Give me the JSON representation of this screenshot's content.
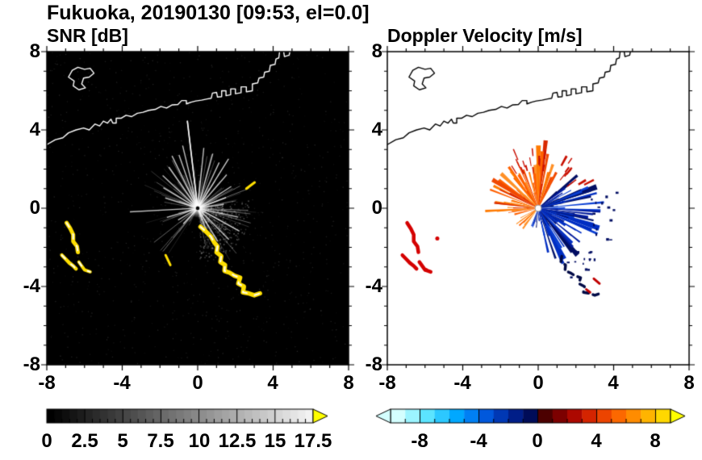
{
  "title": "Fukuoka, 20190130 [09:53, el=0.0]",
  "panels": {
    "snr": {
      "title": "SNR [dB]",
      "x_tick_labels": [
        "-8",
        "-4",
        "0",
        "4",
        "8"
      ],
      "y_tick_labels": [
        "8",
        "4",
        "0",
        "-4",
        "-8"
      ],
      "colorbar_labels": [
        "0",
        "2.5",
        "5",
        "7.5",
        "10",
        "12.5",
        "15",
        "17.5"
      ]
    },
    "doppler": {
      "title": "Doppler Velocity [m/s]",
      "x_tick_labels": [
        "-8",
        "-4",
        "0",
        "4",
        "8"
      ],
      "y_tick_labels": [
        "8",
        "4",
        "0",
        "-4",
        "-8"
      ],
      "colorbar_labels": [
        "-8",
        "-4",
        "0",
        "4",
        "8"
      ]
    }
  },
  "coastline": {
    "main": [
      [
        -8.0,
        3.25
      ],
      [
        -7.55,
        3.5
      ],
      [
        -7.15,
        3.6
      ],
      [
        -6.85,
        3.85
      ],
      [
        -6.45,
        4.0
      ],
      [
        -6.05,
        4.1
      ],
      [
        -5.75,
        4.0
      ],
      [
        -5.45,
        4.3
      ],
      [
        -5.2,
        4.2
      ],
      [
        -5.0,
        4.45
      ],
      [
        -4.78,
        4.35
      ],
      [
        -4.6,
        4.55
      ],
      [
        -4.5,
        4.35
      ],
      [
        -4.32,
        4.35
      ],
      [
        -4.32,
        4.6
      ],
      [
        -4.05,
        4.6
      ],
      [
        -3.8,
        4.75
      ],
      [
        -3.5,
        4.68
      ],
      [
        -3.2,
        4.85
      ],
      [
        -2.9,
        4.9
      ],
      [
        -2.6,
        5.0
      ],
      [
        -2.25,
        5.05
      ],
      [
        -1.95,
        5.2
      ],
      [
        -1.65,
        5.12
      ],
      [
        -1.35,
        5.28
      ],
      [
        -1.05,
        5.3
      ],
      [
        -0.85,
        5.5
      ],
      [
        -0.6,
        5.5
      ],
      [
        -0.6,
        5.33
      ],
      [
        -0.35,
        5.42
      ],
      [
        -0.1,
        5.48
      ],
      [
        0.2,
        5.52
      ],
      [
        0.5,
        5.58
      ],
      [
        0.72,
        5.62
      ],
      [
        0.78,
        5.88
      ],
      [
        1.0,
        5.92
      ],
      [
        1.05,
        5.68
      ],
      [
        1.27,
        5.7
      ],
      [
        1.27,
        6.0
      ],
      [
        1.5,
        6.0
      ],
      [
        1.5,
        5.75
      ],
      [
        1.75,
        5.8
      ],
      [
        1.75,
        6.1
      ],
      [
        2.0,
        6.1
      ],
      [
        2.0,
        5.85
      ],
      [
        2.3,
        5.9
      ],
      [
        2.3,
        6.2
      ],
      [
        2.58,
        6.2
      ],
      [
        2.58,
        5.95
      ],
      [
        2.9,
        6.0
      ],
      [
        2.9,
        6.35
      ],
      [
        3.18,
        6.4
      ],
      [
        3.25,
        6.65
      ],
      [
        3.5,
        6.7
      ],
      [
        3.55,
        6.95
      ],
      [
        3.8,
        7.0
      ],
      [
        3.85,
        7.3
      ],
      [
        4.1,
        7.35
      ],
      [
        4.15,
        7.62
      ],
      [
        4.3,
        7.68
      ],
      [
        4.35,
        8.05
      ]
    ],
    "spur": [
      [
        4.55,
        8.05
      ],
      [
        4.6,
        7.75
      ],
      [
        4.85,
        7.82
      ],
      [
        4.9,
        8.05
      ]
    ],
    "island": [
      [
        -6.85,
        6.7
      ],
      [
        -6.65,
        7.05
      ],
      [
        -6.35,
        7.2
      ],
      [
        -6.0,
        7.1
      ],
      [
        -5.7,
        7.15
      ],
      [
        -5.5,
        6.9
      ],
      [
        -5.75,
        6.7
      ],
      [
        -6.05,
        6.65
      ],
      [
        -6.15,
        6.35
      ],
      [
        -5.95,
        6.15
      ],
      [
        -6.3,
        6.05
      ],
      [
        -6.6,
        6.25
      ],
      [
        -6.55,
        6.5
      ],
      [
        -6.85,
        6.7
      ]
    ]
  },
  "chart_data": [
    {
      "type": "heatmap",
      "title": "SNR [dB]",
      "xlabel": "",
      "ylabel": "",
      "xlim": [
        -8,
        8
      ],
      "ylim": [
        -8,
        8
      ],
      "x_ticks": [
        -8,
        -4,
        0,
        4,
        8
      ],
      "y_ticks": [
        -8,
        -4,
        0,
        4,
        8
      ],
      "background": "#000000",
      "radar_center": [
        0,
        0
      ],
      "colorbar": {
        "min": 0,
        "max": 17.5,
        "tick_values": [
          0,
          2.5,
          5,
          7.5,
          10,
          12.5,
          15,
          17.5
        ],
        "minor_tick_step": 0.5,
        "colormap": "grayscale",
        "start_color": "#000000",
        "end_color": "#f2f2f2",
        "over_arrow_color": "#ffff00"
      },
      "features": {
        "bright_streaks": [
          [
            97,
            4.5
          ],
          [
            104,
            3.3
          ],
          [
            110,
            2.9
          ],
          [
            84,
            3.1
          ],
          [
            74,
            2.9
          ],
          [
            64,
            2.6
          ],
          [
            57,
            3.0
          ],
          [
            48,
            2.3
          ],
          [
            117,
            3.0
          ],
          [
            126,
            2.6
          ],
          [
            138,
            2.5
          ],
          [
            150,
            2.1
          ],
          [
            163,
            1.8
          ],
          [
            32,
            2.1
          ],
          [
            20,
            1.6
          ],
          [
            183,
            3.6
          ],
          [
            196,
            1.7
          ],
          [
            210,
            1.2
          ],
          [
            226,
            1.1
          ],
          [
            -12,
            2.2
          ],
          [
            -28,
            2.5
          ],
          [
            -44,
            2.3
          ],
          [
            -58,
            2.0
          ],
          [
            -68,
            1.5
          ],
          [
            8,
            1.4
          ]
        ],
        "clutter_color": "#ffdf00",
        "arcs": {
          "southeast": [
            [
              0.15,
              -0.95
            ],
            [
              0.45,
              -1.2
            ],
            [
              0.7,
              -1.45
            ],
            [
              0.88,
              -1.75
            ],
            [
              1.05,
              -1.95
            ],
            [
              1.0,
              -2.25
            ],
            [
              1.25,
              -2.45
            ],
            [
              1.2,
              -2.75
            ],
            [
              1.45,
              -2.9
            ],
            [
              1.42,
              -3.2
            ],
            [
              1.7,
              -3.3
            ],
            [
              1.95,
              -3.45
            ],
            [
              2.25,
              -3.55
            ],
            [
              2.15,
              -3.85
            ],
            [
              2.45,
              -4.0
            ],
            [
              2.4,
              -4.3
            ],
            [
              2.7,
              -4.35
            ],
            [
              3.0,
              -4.45
            ],
            [
              3.3,
              -4.35
            ]
          ],
          "west1": [
            [
              -6.95,
              -0.75
            ],
            [
              -6.75,
              -1.05
            ],
            [
              -6.6,
              -1.35
            ],
            [
              -6.6,
              -1.7
            ],
            [
              -6.4,
              -1.95
            ],
            [
              -6.35,
              -2.25
            ]
          ],
          "west2": [
            [
              -7.2,
              -2.4
            ],
            [
              -7.0,
              -2.6
            ],
            [
              -6.8,
              -2.8
            ],
            [
              -6.6,
              -2.95
            ],
            [
              -6.45,
              -3.1
            ]
          ],
          "west3": [
            [
              -6.3,
              -2.75
            ],
            [
              -6.0,
              -3.15
            ],
            [
              -5.7,
              -3.25
            ]
          ],
          "dash_ne": [
            [
              2.58,
              1.0
            ],
            [
              3.02,
              1.32
            ]
          ],
          "dash_sw": [
            [
              -1.7,
              -2.4
            ],
            [
              -1.45,
              -2.9
            ]
          ]
        }
      }
    },
    {
      "type": "heatmap",
      "title": "Doppler Velocity [m/s]",
      "xlabel": "",
      "ylabel": "",
      "xlim": [
        -8,
        8
      ],
      "ylim": [
        -8,
        8
      ],
      "x_ticks": [
        -8,
        -4,
        0,
        4,
        8
      ],
      "y_ticks": [
        -8,
        -4,
        0,
        4,
        8
      ],
      "background": "#ffffff",
      "radar_center": [
        0,
        0
      ],
      "colorbar": {
        "min": -10,
        "max": 10,
        "tick_values": [
          -8,
          -4,
          0,
          4,
          8
        ],
        "minor_tick_step": 1,
        "colors": [
          "#d4ffff",
          "#9cf4ff",
          "#5ce4ff",
          "#2cc8ff",
          "#00a8ff",
          "#0080f4",
          "#0058dc",
          "#0038b4",
          "#001e88",
          "#000c58",
          "#4c0000",
          "#7c0000",
          "#ac0800",
          "#d42400",
          "#ec4400",
          "#fc6800",
          "#ff8c00",
          "#ffb400",
          "#ffd800",
          "#fcfc64"
        ],
        "under_arrow_color": "#d4ffff",
        "over_arrow_color": "#ffff00"
      },
      "echo": {
        "positive_fan": {
          "angle_deg_range": [
            58,
            193
          ],
          "max_range": 3.3,
          "colors": [
            "#ff7a00",
            "#ff9026",
            "#ff6000",
            "#f04800",
            "#d82800"
          ]
        },
        "negative_fan": {
          "angle_deg_range": [
            -78,
            40
          ],
          "max_range": 3.6,
          "colors": [
            "#001a9c",
            "#002ec2",
            "#00136e",
            "#0a3fd4",
            "#000d62"
          ]
        },
        "red_scatter_color": "#c80f00",
        "navy_scatter_color": "#000d62",
        "west_clutter_color": "#d40000",
        "dark_arc_color": "#000a46"
      }
    }
  ]
}
